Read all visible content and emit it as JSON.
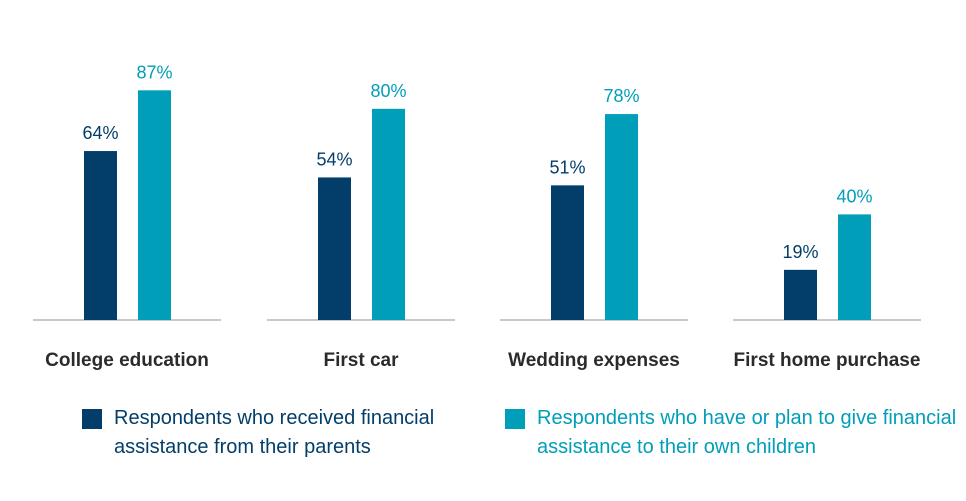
{
  "colors": {
    "series_0": "#033E6A",
    "series_1": "#009EB9",
    "baseline": "#c8c8c8",
    "category_text": "#2b2b2b"
  },
  "chart_data": {
    "type": "bar",
    "categories": [
      "College education",
      "First car",
      "Wedding expenses",
      "First home purchase"
    ],
    "series": [
      {
        "name": "Respondents who received financial assistance from their parents",
        "values": [
          64,
          54,
          51,
          19
        ],
        "value_labels": [
          "64%",
          "54%",
          "51%",
          "19%"
        ]
      },
      {
        "name": "Respondents who have or plan to give financial assistance to their own children",
        "values": [
          87,
          80,
          78,
          40
        ],
        "value_labels": [
          "87%",
          "80%",
          "78%",
          "40%"
        ]
      }
    ],
    "ylim": [
      0,
      100
    ],
    "grid": false,
    "legend_position": "bottom"
  }
}
